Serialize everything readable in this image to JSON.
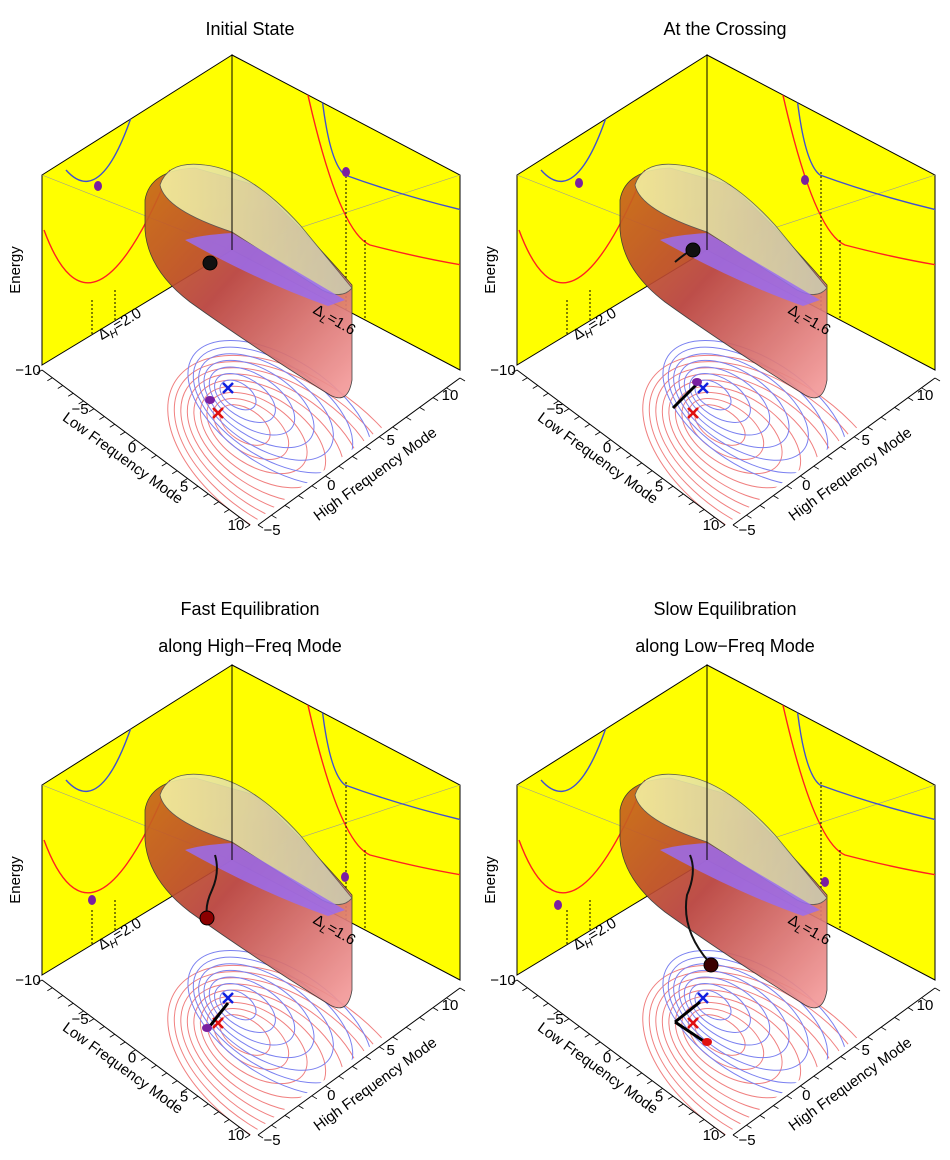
{
  "panels": [
    {
      "title": [
        "Initial State"
      ],
      "z_label": "Energy",
      "x_label": "Low Frequency Mode",
      "y_label": "High Frequency Mode",
      "x_ticks": [
        "−10",
        "−5",
        "0",
        "5",
        "10"
      ],
      "y_ticks": [
        "−5",
        "0",
        "5",
        "10"
      ],
      "delta_h": {
        "symbol": "Δ",
        "subscript": "H",
        "value": "=2.0"
      },
      "delta_l": {
        "symbol": "Δ",
        "subscript": "L",
        "value": "=1.6"
      }
    },
    {
      "title": [
        "At the Crossing"
      ],
      "z_label": "Energy",
      "x_label": "Low Frequency Mode",
      "y_label": "High Frequency Mode",
      "x_ticks": [
        "−10",
        "−5",
        "0",
        "5",
        "10"
      ],
      "y_ticks": [
        "−5",
        "0",
        "5",
        "10"
      ],
      "delta_h": {
        "symbol": "Δ",
        "subscript": "H",
        "value": "=2.0"
      },
      "delta_l": {
        "symbol": "Δ",
        "subscript": "L",
        "value": "=1.6"
      }
    },
    {
      "title": [
        "Fast Equilibration",
        "along High−Freq Mode"
      ],
      "z_label": "Energy",
      "x_label": "Low Frequency Mode",
      "y_label": "High Frequency Mode",
      "x_ticks": [
        "−10",
        "−5",
        "0",
        "5",
        "10"
      ],
      "y_ticks": [
        "−5",
        "0",
        "5",
        "10"
      ],
      "delta_h": {
        "symbol": "Δ",
        "subscript": "H",
        "value": "=2.0"
      },
      "delta_l": {
        "symbol": "Δ",
        "subscript": "L",
        "value": "=1.6"
      }
    },
    {
      "title": [
        "Slow Equilibration",
        "along Low−Freq Mode"
      ],
      "z_label": "Energy",
      "x_label": "Low Frequency Mode",
      "y_label": "High Frequency Mode",
      "x_ticks": [
        "−10",
        "−5",
        "0",
        "5",
        "10"
      ],
      "y_ticks": [
        "−5",
        "0",
        "5",
        "10"
      ],
      "delta_h": {
        "symbol": "Δ",
        "subscript": "H",
        "value": "=2.0"
      },
      "delta_l": {
        "symbol": "Δ",
        "subscript": "L",
        "value": "=1.6"
      }
    }
  ]
}
